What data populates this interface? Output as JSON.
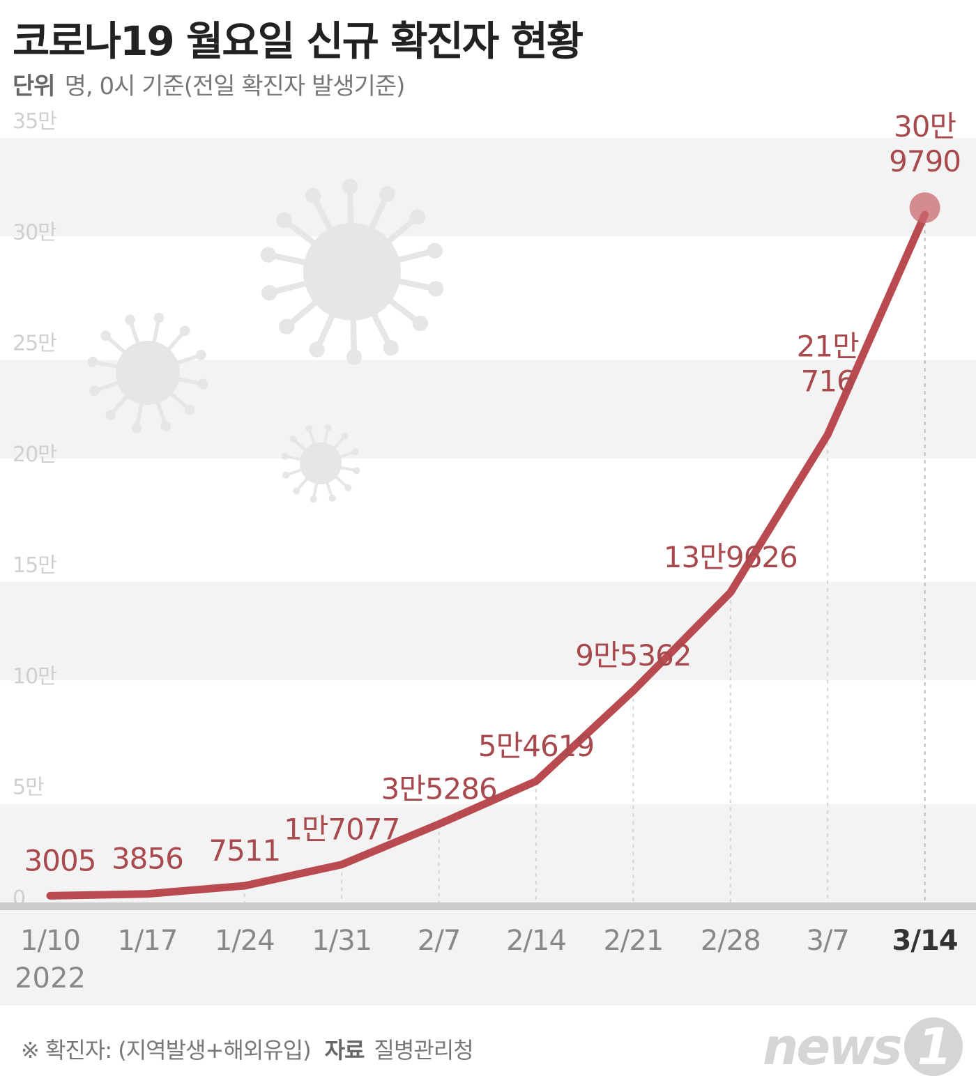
{
  "title": "코로나19 월요일 신규 확진자 현황",
  "unit_label": "단위",
  "unit_text": "명, 0시 기준(전일 확진자 발생기준)",
  "footnote": "※ 확진자: (지역발생+해외유입)",
  "source_label": "자료",
  "source_text": "질병관리청",
  "logo_text": "news",
  "logo_mark": "1",
  "colors": {
    "line": "#b94a4f",
    "label": "#a8494d",
    "band": "#f3f3f3",
    "axis": "#cccccc",
    "tick": "#888888",
    "virus": "#e6e6e6"
  },
  "chart_data": {
    "type": "line",
    "title": "코로나19 월요일 신규 확진자 현황",
    "xlabel": "",
    "ylabel": "",
    "year_label": "2022",
    "categories": [
      "1/10",
      "1/17",
      "1/24",
      "1/31",
      "2/7",
      "2/14",
      "2/21",
      "2/28",
      "3/7",
      "3/14"
    ],
    "values": [
      3005,
      3856,
      7511,
      17077,
      35286,
      54619,
      95362,
      139626,
      210716,
      309790
    ],
    "data_labels": [
      [
        "3005"
      ],
      [
        "3856"
      ],
      [
        "7511"
      ],
      [
        "1만7077"
      ],
      [
        "3만5286"
      ],
      [
        "5만4619"
      ],
      [
        "9만5362"
      ],
      [
        "13만9626"
      ],
      [
        "21만",
        "716"
      ],
      [
        "30만",
        "9790"
      ]
    ],
    "y_ticks": [
      0,
      50000,
      100000,
      150000,
      200000,
      250000,
      300000,
      350000
    ],
    "y_tick_labels": [
      "0",
      "5만",
      "10만",
      "15만",
      "20만",
      "25만",
      "30만",
      "35만"
    ],
    "ylim": [
      0,
      350000
    ],
    "highlight_index": 9,
    "grid": "alternating horizontal bands",
    "legend": "none"
  }
}
